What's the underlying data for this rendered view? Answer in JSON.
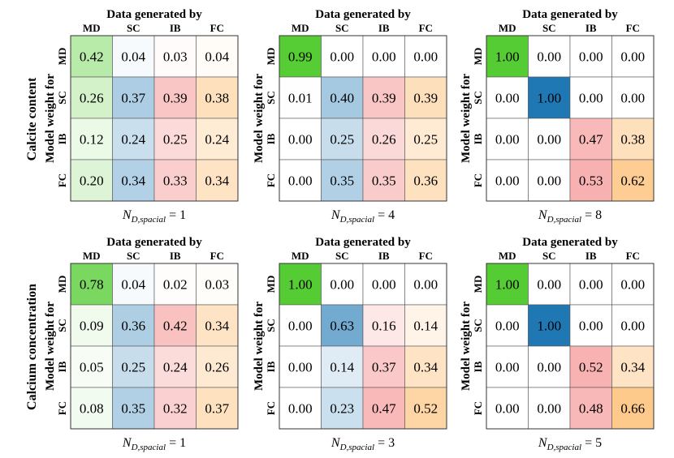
{
  "figure": {
    "row_titles": [
      "Calcite content",
      "Calcium concentration"
    ],
    "column_header": "Data generated by",
    "y_axis_label": "Model weight for",
    "xlabel_prefix": "N",
    "xlabel_subscript": "D,spacial",
    "xlabel_equals": " = "
  },
  "colors": {
    "MD": "#55cc33",
    "SC": "#1f78b4",
    "IB": "#f26b6b",
    "FC": "#fdae50"
  },
  "chart_data": [
    {
      "type": "heatmap",
      "row_label": "Calcite content",
      "column_title": "Data generated by",
      "ylabel": "Model weight for",
      "xlabel": "N_{D,spacial} = 1",
      "n": "1",
      "columns": [
        "MD",
        "SC",
        "IB",
        "FC"
      ],
      "rows": [
        "MD",
        "SC",
        "IB",
        "FC"
      ],
      "values": [
        [
          0.42,
          0.04,
          0.03,
          0.04
        ],
        [
          0.26,
          0.37,
          0.39,
          0.38
        ],
        [
          0.12,
          0.24,
          0.25,
          0.24
        ],
        [
          0.2,
          0.34,
          0.33,
          0.34
        ]
      ]
    },
    {
      "type": "heatmap",
      "row_label": "Calcite content",
      "column_title": "Data generated by",
      "ylabel": "Model weight for",
      "xlabel": "N_{D,spacial} = 4",
      "n": "4",
      "columns": [
        "MD",
        "SC",
        "IB",
        "FC"
      ],
      "rows": [
        "MD",
        "SC",
        "IB",
        "FC"
      ],
      "values": [
        [
          0.99,
          0.0,
          0.0,
          0.0
        ],
        [
          0.01,
          0.4,
          0.39,
          0.39
        ],
        [
          0.0,
          0.25,
          0.26,
          0.25
        ],
        [
          0.0,
          0.35,
          0.35,
          0.36
        ]
      ]
    },
    {
      "type": "heatmap",
      "row_label": "Calcite content",
      "column_title": "Data generated by",
      "ylabel": "Model weight for",
      "xlabel": "N_{D,spacial} = 8",
      "n": "8",
      "columns": [
        "MD",
        "SC",
        "IB",
        "FC"
      ],
      "rows": [
        "MD",
        "SC",
        "IB",
        "FC"
      ],
      "values": [
        [
          1.0,
          0.0,
          0.0,
          0.0
        ],
        [
          0.0,
          1.0,
          0.0,
          0.0
        ],
        [
          0.0,
          0.0,
          0.47,
          0.38
        ],
        [
          0.0,
          0.0,
          0.53,
          0.62
        ]
      ]
    },
    {
      "type": "heatmap",
      "row_label": "Calcium concentration",
      "column_title": "Data generated by",
      "ylabel": "Model weight for",
      "xlabel": "N_{D,spacial} = 1",
      "n": "1",
      "columns": [
        "MD",
        "SC",
        "IB",
        "FC"
      ],
      "rows": [
        "MD",
        "SC",
        "IB",
        "FC"
      ],
      "values": [
        [
          0.78,
          0.04,
          0.02,
          0.03
        ],
        [
          0.09,
          0.36,
          0.42,
          0.34
        ],
        [
          0.05,
          0.25,
          0.24,
          0.26
        ],
        [
          0.08,
          0.35,
          0.32,
          0.37
        ]
      ]
    },
    {
      "type": "heatmap",
      "row_label": "Calcium concentration",
      "column_title": "Data generated by",
      "ylabel": "Model weight for",
      "xlabel": "N_{D,spacial} = 3",
      "n": "3",
      "columns": [
        "MD",
        "SC",
        "IB",
        "FC"
      ],
      "rows": [
        "MD",
        "SC",
        "IB",
        "FC"
      ],
      "values": [
        [
          1.0,
          0.0,
          0.0,
          0.0
        ],
        [
          0.0,
          0.63,
          0.16,
          0.14
        ],
        [
          0.0,
          0.14,
          0.37,
          0.34
        ],
        [
          0.0,
          0.23,
          0.47,
          0.52
        ]
      ]
    },
    {
      "type": "heatmap",
      "row_label": "Calcium concentration",
      "column_title": "Data generated by",
      "ylabel": "Model weight for",
      "xlabel": "N_{D,spacial} = 5",
      "n": "5",
      "columns": [
        "MD",
        "SC",
        "IB",
        "FC"
      ],
      "rows": [
        "MD",
        "SC",
        "IB",
        "FC"
      ],
      "values": [
        [
          1.0,
          0.0,
          0.0,
          0.0
        ],
        [
          0.0,
          1.0,
          0.0,
          0.0
        ],
        [
          0.0,
          0.0,
          0.52,
          0.34
        ],
        [
          0.0,
          0.0,
          0.48,
          0.66
        ]
      ]
    }
  ]
}
